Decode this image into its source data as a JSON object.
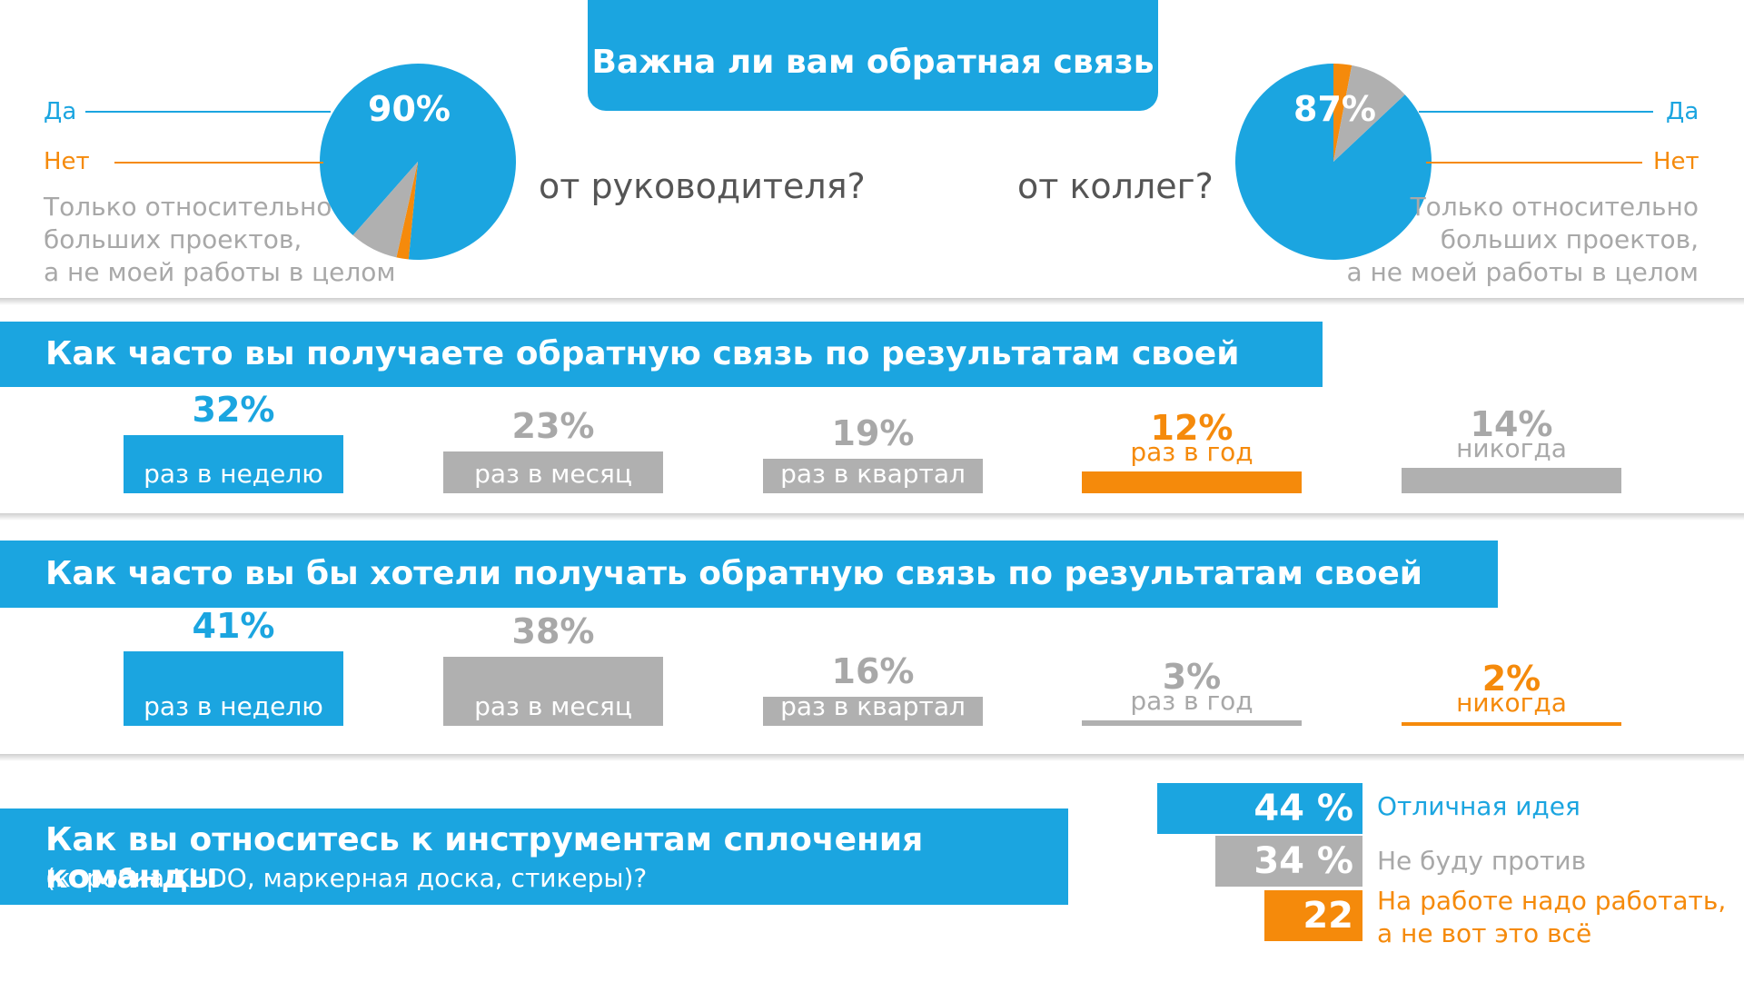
{
  "header": {
    "title": "Важна ли вам обратная связь"
  },
  "pies": {
    "left": {
      "subtitle": "от руководителя?",
      "pct_label": "90%",
      "label_yes": "Да",
      "label_no": "Нет",
      "note_lines": [
        "Только относительно",
        "больших проектов,",
        "а не моей работы в целом"
      ]
    },
    "right": {
      "subtitle": "от коллег?",
      "pct_label": "87%",
      "label_yes": "Да",
      "label_no": "Нет",
      "note_lines": [
        "Только относительно",
        "больших проектов,",
        "а не моей работы в целом"
      ]
    }
  },
  "q1": {
    "title": "Как часто вы получаете обратную связь по результатам своей работы?",
    "bars": [
      {
        "pct": "32%",
        "label": "раз в неделю"
      },
      {
        "pct": "23%",
        "label": "раз в месяц"
      },
      {
        "pct": "19%",
        "label": "раз в квартал"
      },
      {
        "pct": "12%",
        "label": "раз в год"
      },
      {
        "pct": "14%",
        "label": "никогда"
      }
    ]
  },
  "q2": {
    "title": "Как часто вы бы хотели получать обратную связь по результатам своей работы?",
    "bars": [
      {
        "pct": "41%",
        "label": "раз в неделю"
      },
      {
        "pct": "38%",
        "label": "раз в месяц"
      },
      {
        "pct": "16%",
        "label": "раз в квартал"
      },
      {
        "pct": "3%",
        "label": "раз в год"
      },
      {
        "pct": "2%",
        "label": "никогда"
      }
    ]
  },
  "q3": {
    "title": "Как вы относитесь к инструментам сплочения команды",
    "subtitle": "(коробка KUDO, маркерная доска, стикеры)?",
    "options": [
      {
        "pct": "44 %",
        "label_lines": [
          "Отличная идея"
        ]
      },
      {
        "pct": "34 %",
        "label_lines": [
          "Не буду против"
        ]
      },
      {
        "pct": "22 %",
        "label_lines": [
          "На работе надо работать,",
          "а не вот это всё"
        ]
      }
    ]
  },
  "colors": {
    "blue": "#1ba5e0",
    "gray": "#b0b0b0",
    "orange": "#f58a0b"
  },
  "chart_data": [
    {
      "type": "pie",
      "title": "Важна ли вам обратная связь от руководителя?",
      "categories": [
        "Да",
        "Нет",
        "Только относительно больших проектов, а не моей работы в целом"
      ],
      "values": [
        90,
        2,
        8
      ]
    },
    {
      "type": "pie",
      "title": "Важна ли вам обратная связь от коллег?",
      "categories": [
        "Да",
        "Нет",
        "Только относительно больших проектов, а не моей работы в целом"
      ],
      "values": [
        87,
        3,
        10
      ]
    },
    {
      "type": "bar",
      "title": "Как часто вы получаете обратную связь по результатам своей работы?",
      "categories": [
        "раз в неделю",
        "раз в месяц",
        "раз в квартал",
        "раз в год",
        "никогда"
      ],
      "values": [
        32,
        23,
        19,
        12,
        14
      ],
      "bar_colors": [
        "blue",
        "gray",
        "gray",
        "orange",
        "gray"
      ]
    },
    {
      "type": "bar",
      "title": "Как часто вы бы хотели получать обратную связь по результатам своей работы?",
      "categories": [
        "раз в неделю",
        "раз в месяц",
        "раз в квартал",
        "раз в год",
        "никогда"
      ],
      "values": [
        41,
        38,
        16,
        3,
        2
      ],
      "bar_colors": [
        "blue",
        "gray",
        "gray",
        "gray",
        "orange"
      ]
    },
    {
      "type": "bar",
      "title": "Как вы относитесь к инструментам сплочения команды (коробка KUDO, маркерная доска, стикеры)?",
      "categories": [
        "Отличная идея",
        "Не буду против",
        "На работе надо работать, а не вот это всё"
      ],
      "values": [
        44,
        34,
        22
      ],
      "bar_colors": [
        "blue",
        "gray",
        "orange"
      ]
    }
  ]
}
